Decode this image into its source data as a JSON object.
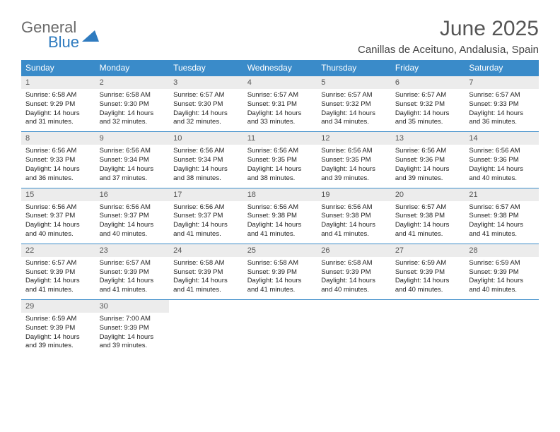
{
  "logo": {
    "line1": "General",
    "line2": "Blue"
  },
  "title": "June 2025",
  "subtitle": "Canillas de Aceituno, Andalusia, Spain",
  "colors": {
    "header_bg": "#3a8bc9",
    "daynum_bg": "#ececec",
    "rule": "#3a8bc9"
  },
  "weekdays": [
    "Sunday",
    "Monday",
    "Tuesday",
    "Wednesday",
    "Thursday",
    "Friday",
    "Saturday"
  ],
  "weeks": [
    [
      {
        "n": "1",
        "sr": "6:58 AM",
        "ss": "9:29 PM",
        "dl": "14 hours and 31 minutes."
      },
      {
        "n": "2",
        "sr": "6:58 AM",
        "ss": "9:30 PM",
        "dl": "14 hours and 32 minutes."
      },
      {
        "n": "3",
        "sr": "6:57 AM",
        "ss": "9:30 PM",
        "dl": "14 hours and 32 minutes."
      },
      {
        "n": "4",
        "sr": "6:57 AM",
        "ss": "9:31 PM",
        "dl": "14 hours and 33 minutes."
      },
      {
        "n": "5",
        "sr": "6:57 AM",
        "ss": "9:32 PM",
        "dl": "14 hours and 34 minutes."
      },
      {
        "n": "6",
        "sr": "6:57 AM",
        "ss": "9:32 PM",
        "dl": "14 hours and 35 minutes."
      },
      {
        "n": "7",
        "sr": "6:57 AM",
        "ss": "9:33 PM",
        "dl": "14 hours and 36 minutes."
      }
    ],
    [
      {
        "n": "8",
        "sr": "6:56 AM",
        "ss": "9:33 PM",
        "dl": "14 hours and 36 minutes."
      },
      {
        "n": "9",
        "sr": "6:56 AM",
        "ss": "9:34 PM",
        "dl": "14 hours and 37 minutes."
      },
      {
        "n": "10",
        "sr": "6:56 AM",
        "ss": "9:34 PM",
        "dl": "14 hours and 38 minutes."
      },
      {
        "n": "11",
        "sr": "6:56 AM",
        "ss": "9:35 PM",
        "dl": "14 hours and 38 minutes."
      },
      {
        "n": "12",
        "sr": "6:56 AM",
        "ss": "9:35 PM",
        "dl": "14 hours and 39 minutes."
      },
      {
        "n": "13",
        "sr": "6:56 AM",
        "ss": "9:36 PM",
        "dl": "14 hours and 39 minutes."
      },
      {
        "n": "14",
        "sr": "6:56 AM",
        "ss": "9:36 PM",
        "dl": "14 hours and 40 minutes."
      }
    ],
    [
      {
        "n": "15",
        "sr": "6:56 AM",
        "ss": "9:37 PM",
        "dl": "14 hours and 40 minutes."
      },
      {
        "n": "16",
        "sr": "6:56 AM",
        "ss": "9:37 PM",
        "dl": "14 hours and 40 minutes."
      },
      {
        "n": "17",
        "sr": "6:56 AM",
        "ss": "9:37 PM",
        "dl": "14 hours and 41 minutes."
      },
      {
        "n": "18",
        "sr": "6:56 AM",
        "ss": "9:38 PM",
        "dl": "14 hours and 41 minutes."
      },
      {
        "n": "19",
        "sr": "6:56 AM",
        "ss": "9:38 PM",
        "dl": "14 hours and 41 minutes."
      },
      {
        "n": "20",
        "sr": "6:57 AM",
        "ss": "9:38 PM",
        "dl": "14 hours and 41 minutes."
      },
      {
        "n": "21",
        "sr": "6:57 AM",
        "ss": "9:38 PM",
        "dl": "14 hours and 41 minutes."
      }
    ],
    [
      {
        "n": "22",
        "sr": "6:57 AM",
        "ss": "9:39 PM",
        "dl": "14 hours and 41 minutes."
      },
      {
        "n": "23",
        "sr": "6:57 AM",
        "ss": "9:39 PM",
        "dl": "14 hours and 41 minutes."
      },
      {
        "n": "24",
        "sr": "6:58 AM",
        "ss": "9:39 PM",
        "dl": "14 hours and 41 minutes."
      },
      {
        "n": "25",
        "sr": "6:58 AM",
        "ss": "9:39 PM",
        "dl": "14 hours and 41 minutes."
      },
      {
        "n": "26",
        "sr": "6:58 AM",
        "ss": "9:39 PM",
        "dl": "14 hours and 40 minutes."
      },
      {
        "n": "27",
        "sr": "6:59 AM",
        "ss": "9:39 PM",
        "dl": "14 hours and 40 minutes."
      },
      {
        "n": "28",
        "sr": "6:59 AM",
        "ss": "9:39 PM",
        "dl": "14 hours and 40 minutes."
      }
    ],
    [
      {
        "n": "29",
        "sr": "6:59 AM",
        "ss": "9:39 PM",
        "dl": "14 hours and 39 minutes."
      },
      {
        "n": "30",
        "sr": "7:00 AM",
        "ss": "9:39 PM",
        "dl": "14 hours and 39 minutes."
      },
      null,
      null,
      null,
      null,
      null
    ]
  ],
  "labels": {
    "sunrise": "Sunrise: ",
    "sunset": "Sunset: ",
    "daylight": "Daylight: "
  }
}
